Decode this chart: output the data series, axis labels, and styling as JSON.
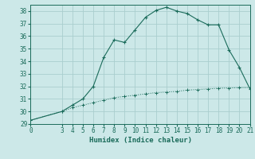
{
  "xlabel": "Humidex (Indice chaleur)",
  "ylabel": "",
  "bg_color": "#cce8e8",
  "grid_color": "#aacece",
  "line_color": "#1a6b5a",
  "curve1_x": [
    0,
    3,
    4,
    5,
    6,
    7,
    8,
    9,
    10,
    11,
    12,
    13,
    14,
    15,
    16,
    17,
    18,
    19,
    20,
    21
  ],
  "curve1_y": [
    29.3,
    30.0,
    30.5,
    31.0,
    32.0,
    34.3,
    35.7,
    35.5,
    36.5,
    37.5,
    38.05,
    38.3,
    38.0,
    37.8,
    37.3,
    36.9,
    36.9,
    34.9,
    33.5,
    31.8
  ],
  "curve2_x": [
    0,
    3,
    4,
    5,
    6,
    7,
    8,
    9,
    10,
    11,
    12,
    13,
    14,
    15,
    16,
    17,
    18,
    19,
    20,
    21
  ],
  "curve2_y": [
    29.3,
    30.0,
    30.3,
    30.5,
    30.7,
    30.9,
    31.1,
    31.2,
    31.3,
    31.4,
    31.5,
    31.55,
    31.6,
    31.7,
    31.75,
    31.8,
    31.85,
    31.87,
    31.9,
    31.9
  ],
  "xlim": [
    0,
    21
  ],
  "ylim": [
    29,
    38.5
  ],
  "xticks": [
    0,
    3,
    4,
    5,
    6,
    7,
    8,
    9,
    10,
    11,
    12,
    13,
    14,
    15,
    16,
    17,
    18,
    19,
    20,
    21
  ],
  "yticks": [
    29,
    30,
    31,
    32,
    33,
    34,
    35,
    36,
    37,
    38
  ],
  "tick_fontsize": 5.5,
  "xlabel_fontsize": 6.5
}
